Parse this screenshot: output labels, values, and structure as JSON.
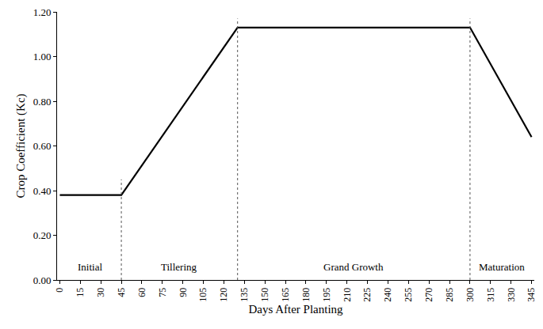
{
  "chart_data": {
    "type": "line",
    "x_label": "Days After Planting",
    "y_label": "Crop Coefficient (Kc)",
    "x": [
      0,
      45,
      130,
      300,
      345
    ],
    "values": [
      0.38,
      0.38,
      1.13,
      1.13,
      0.64
    ],
    "color": "#000000",
    "xlim": [
      -2,
      347
    ],
    "xticks": [
      0,
      15,
      30,
      45,
      60,
      75,
      90,
      105,
      120,
      135,
      150,
      165,
      180,
      195,
      210,
      225,
      240,
      255,
      270,
      285,
      300,
      315,
      330,
      345
    ],
    "ylim": [
      0,
      1.2
    ],
    "yticks": [
      {
        "value": 0,
        "label": "0.00"
      },
      {
        "value": 0.2,
        "label": "0.20"
      },
      {
        "value": 0.4,
        "label": "0.40"
      },
      {
        "value": 0.6,
        "label": "0.60"
      },
      {
        "value": 0.8,
        "label": "0.80"
      },
      {
        "value": 1.0,
        "label": "1.00"
      },
      {
        "value": 1.2,
        "label": "1.20"
      }
    ],
    "grid": false,
    "line_style": "solid",
    "stage_boundaries": [
      {
        "x": 45,
        "y_top": 0.45
      },
      {
        "x": 130,
        "y_top": 1.17
      },
      {
        "x": 300,
        "y_top": 1.17
      }
    ],
    "annotations": [
      {
        "text": "Initial",
        "x": 22,
        "y": 0.06
      },
      {
        "text": "Tillering",
        "x": 87,
        "y": 0.06
      },
      {
        "text": "Grand Growth",
        "x": 215,
        "y": 0.06
      },
      {
        "text": "Maturation",
        "x": 323,
        "y": 0.06
      }
    ]
  }
}
